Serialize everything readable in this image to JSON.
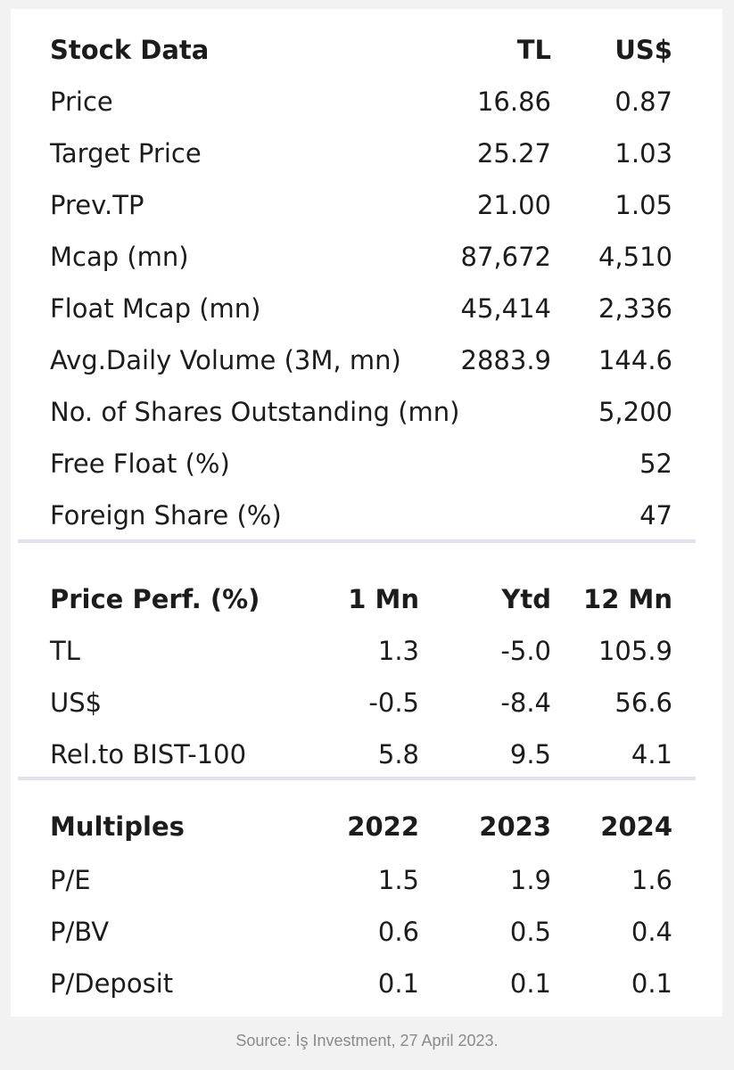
{
  "stock_data": {
    "header": {
      "label": "Stock Data",
      "tl": "TL",
      "usd": "US$"
    },
    "rows": [
      {
        "label": "Price",
        "tl": "16.86",
        "usd": "0.87"
      },
      {
        "label": "Target Price",
        "tl": "25.27",
        "usd": "1.03"
      },
      {
        "label": "Prev.TP",
        "tl": "21.00",
        "usd": "1.05"
      },
      {
        "label": "Mcap (mn)",
        "tl": "87,672",
        "usd": "4,510"
      },
      {
        "label": "Float Mcap (mn)",
        "tl": "45,414",
        "usd": "2,336"
      },
      {
        "label": "Avg.Daily Volume (3M, mn)",
        "tl": "2883.9",
        "usd": "144.6"
      },
      {
        "label": "No. of Shares Outstanding (mn)",
        "tl": "",
        "usd": "5,200"
      },
      {
        "label": "Free Float (%)",
        "tl": "",
        "usd": "52"
      },
      {
        "label": "Foreign Share (%)",
        "tl": "",
        "usd": "47"
      }
    ]
  },
  "price_perf": {
    "header": {
      "label": "Price Perf. (%)",
      "c1": "1 Mn",
      "c2": "Ytd",
      "c3": "12 Mn"
    },
    "rows": [
      {
        "label": "TL",
        "c1": "1.3",
        "c2": "-5.0",
        "c3": "105.9"
      },
      {
        "label": "US$",
        "c1": "-0.5",
        "c2": "-8.4",
        "c3": "56.6"
      },
      {
        "label": "Rel.to BIST-100",
        "c1": "5.8",
        "c2": "9.5",
        "c3": "4.1"
      }
    ]
  },
  "multiples": {
    "header": {
      "label": "Multiples",
      "c1": "2022",
      "c2": "2023",
      "c3": "2024"
    },
    "rows": [
      {
        "label": "P/E",
        "c1": "1.5",
        "c2": "1.9",
        "c3": "1.6"
      },
      {
        "label": "P/BV",
        "c1": "0.6",
        "c2": "0.5",
        "c3": "0.4"
      },
      {
        "label": "P/Deposit",
        "c1": "0.1",
        "c2": "0.1",
        "c3": "0.1"
      }
    ]
  },
  "source": "Source: İş Investment, 27 April 2023."
}
